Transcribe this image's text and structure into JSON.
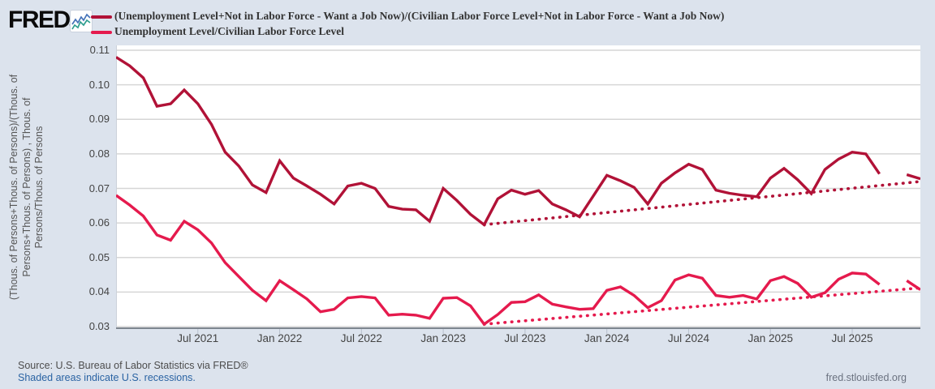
{
  "header": {
    "logo": "FRED",
    "logo_registered": "®",
    "legend": [
      {
        "label": "(Unemployment Level+Not in Labor Force - Want a Job Now)/(Civilian Labor Force Level+Not in Labor Force - Want a Job Now)",
        "color": "#b11237"
      },
      {
        "label": "Unemployment Level/Civilian Labor Force Level",
        "color": "#e51a4d"
      }
    ]
  },
  "y_axis_title": "(Thous. of Persons+Thous. of Persons)/(Thous. of Persons+Thous. of Persons) , Thous. of Persons/Thous. of Persons",
  "footer": {
    "source": "Source: U.S. Bureau of Labor Statistics via FRED®",
    "recession_note": "Shaded areas indicate U.S. recessions.",
    "site": "fred.stlouisfed.org"
  },
  "chart_data": {
    "type": "line",
    "ylim": [
      0.03,
      0.11
    ],
    "grid": true,
    "background": "#ffffff",
    "gridline_color": "#d6d6d6",
    "months": [
      "2021-01",
      "2021-02",
      "2021-03",
      "2021-04",
      "2021-05",
      "2021-06",
      "2021-07",
      "2021-08",
      "2021-09",
      "2021-10",
      "2021-11",
      "2021-12",
      "2022-01",
      "2022-02",
      "2022-03",
      "2022-04",
      "2022-05",
      "2022-06",
      "2022-07",
      "2022-08",
      "2022-09",
      "2022-10",
      "2022-11",
      "2022-12",
      "2023-01",
      "2023-02",
      "2023-03",
      "2023-04",
      "2023-05",
      "2023-06",
      "2023-07",
      "2023-08",
      "2023-09",
      "2023-10",
      "2023-11",
      "2023-12",
      "2024-01",
      "2024-02",
      "2024-03",
      "2024-04",
      "2024-05",
      "2024-06",
      "2024-07",
      "2024-08",
      "2024-09",
      "2024-10",
      "2024-11",
      "2024-12",
      "2025-01",
      "2025-02",
      "2025-03",
      "2025-04",
      "2025-05",
      "2025-06",
      "2025-07",
      "2025-08",
      "2025-09",
      "2025-10",
      "2025-11",
      "2025-12"
    ],
    "series": [
      {
        "name": "(Unemployment Level+Not in Labor Force - Want a Job Now)/(Civilian Labor Force Level+Not in Labor Force - Want a Job Now)",
        "color": "#b11237",
        "values": [
          0.108,
          0.1055,
          0.102,
          0.0938,
          0.0945,
          0.0985,
          0.0945,
          0.0885,
          0.0805,
          0.0765,
          0.071,
          0.0688,
          0.078,
          0.073,
          0.0707,
          0.0683,
          0.0655,
          0.0707,
          0.0715,
          0.07,
          0.0648,
          0.064,
          0.0638,
          0.0605,
          0.07,
          0.0665,
          0.0625,
          0.0595,
          0.067,
          0.0695,
          0.0683,
          0.0694,
          0.0655,
          0.0638,
          0.0618,
          0.0678,
          0.0738,
          0.0722,
          0.0703,
          0.0655,
          0.0715,
          0.0745,
          0.077,
          0.0755,
          0.0695,
          0.0686,
          0.068,
          0.0676,
          0.073,
          0.0758,
          0.0725,
          0.0685,
          0.0755,
          0.0785,
          0.0805,
          0.08,
          0.0742,
          null,
          0.074,
          0.0728
        ]
      },
      {
        "name": "Unemployment Level/Civilian Labor Force Level",
        "color": "#e51a4d",
        "values": [
          0.068,
          0.0652,
          0.062,
          0.0565,
          0.055,
          0.0605,
          0.058,
          0.0542,
          0.0485,
          0.0445,
          0.0405,
          0.0375,
          0.0433,
          0.0407,
          0.038,
          0.0343,
          0.035,
          0.0383,
          0.0387,
          0.0383,
          0.0333,
          0.0336,
          0.0333,
          0.0324,
          0.0382,
          0.0384,
          0.036,
          0.0307,
          0.0335,
          0.037,
          0.0372,
          0.0392,
          0.0365,
          0.0357,
          0.035,
          0.0352,
          0.0405,
          0.0415,
          0.039,
          0.0355,
          0.0375,
          0.0435,
          0.045,
          0.044,
          0.039,
          0.0385,
          0.039,
          0.038,
          0.0433,
          0.0445,
          0.0425,
          0.0385,
          0.0398,
          0.0437,
          0.0455,
          0.0452,
          0.0422,
          null,
          0.0433,
          0.0407
        ]
      }
    ],
    "trend_lines": [
      {
        "for_series": 0,
        "style": "dotted",
        "color": "#b11237",
        "start_month": "2023-04",
        "start_value": 0.0595,
        "end_month": "2025-12",
        "end_value": 0.072
      },
      {
        "for_series": 1,
        "style": "dotted",
        "color": "#e51a4d",
        "start_month": "2023-04",
        "start_value": 0.0307,
        "end_month": "2025-12",
        "end_value": 0.0412
      }
    ],
    "y_ticks": [
      {
        "v": 0.11,
        "label": "0.11"
      },
      {
        "v": 0.1,
        "label": "0.10"
      },
      {
        "v": 0.09,
        "label": "0.09"
      },
      {
        "v": 0.08,
        "label": "0.08"
      },
      {
        "v": 0.07,
        "label": "0.07"
      },
      {
        "v": 0.06,
        "label": "0.06"
      },
      {
        "v": 0.05,
        "label": "0.05"
      },
      {
        "v": 0.04,
        "label": "0.04"
      },
      {
        "v": 0.03,
        "label": "0.03"
      }
    ],
    "x_ticks": [
      {
        "i": 6,
        "label": "Jul 2021"
      },
      {
        "i": 12,
        "label": "Jan 2022"
      },
      {
        "i": 18,
        "label": "Jul 2022"
      },
      {
        "i": 24,
        "label": "Jan 2023"
      },
      {
        "i": 30,
        "label": "Jul 2023"
      },
      {
        "i": 36,
        "label": "Jan 2024"
      },
      {
        "i": 42,
        "label": "Jul 2024"
      },
      {
        "i": 48,
        "label": "Jan 2025"
      },
      {
        "i": 54,
        "label": "Jul 2025"
      }
    ]
  }
}
